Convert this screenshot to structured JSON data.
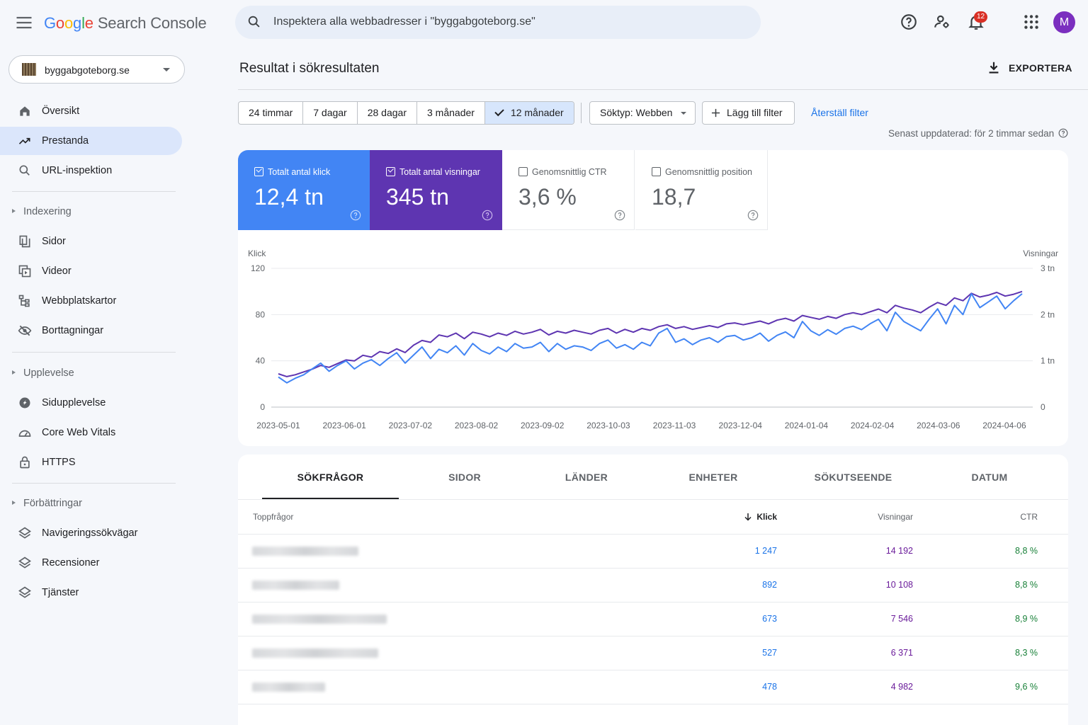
{
  "header": {
    "logo_google": [
      "G",
      "o",
      "o",
      "g",
      "l",
      "e"
    ],
    "logo_product": "Search Console",
    "search_placeholder": "Inspektera alla webbadresser i \"byggabgoteborg.se\"",
    "notification_count": "12",
    "avatar_letter": "M"
  },
  "sidebar": {
    "property": "byggabgoteborg.se",
    "items_top": [
      {
        "label": "Översikt",
        "icon": "home-icon"
      },
      {
        "label": "Prestanda",
        "icon": "trending-up-icon",
        "active": true
      },
      {
        "label": "URL-inspektion",
        "icon": "search-icon"
      }
    ],
    "sections": [
      {
        "title": "Indexering",
        "items": [
          {
            "label": "Sidor",
            "icon": "pages-icon"
          },
          {
            "label": "Videor",
            "icon": "video-icon"
          },
          {
            "label": "Webbplatskartor",
            "icon": "sitemap-icon"
          },
          {
            "label": "Borttagningar",
            "icon": "removals-icon"
          }
        ]
      },
      {
        "title": "Upplevelse",
        "items": [
          {
            "label": "Sidupplevelse",
            "icon": "page-experience-icon"
          },
          {
            "label": "Core Web Vitals",
            "icon": "gauge-icon"
          },
          {
            "label": "HTTPS",
            "icon": "lock-icon"
          }
        ]
      },
      {
        "title": "Förbättringar",
        "items": [
          {
            "label": "Navigeringssökvägar",
            "icon": "layers-icon"
          },
          {
            "label": "Recensioner",
            "icon": "layers-icon"
          },
          {
            "label": "Tjänster",
            "icon": "layers-icon"
          }
        ]
      }
    ]
  },
  "main": {
    "title": "Resultat i sökresultaten",
    "export_label": "EXPORTERA",
    "ranges": [
      "24 timmar",
      "7 dagar",
      "28 dagar",
      "3 månader",
      "12 månader"
    ],
    "selected_range": "12 månader",
    "search_type": "Söktyp: Webben",
    "add_filter": "Lägg till filter",
    "reset_filter": "Återställ filter",
    "updated": "Senast uppdaterad: för 2 timmar sedan"
  },
  "metrics": [
    {
      "label": "Totalt antal klick",
      "value": "12,4 tn",
      "selected": true,
      "color": "#4285f4"
    },
    {
      "label": "Totalt antal visningar",
      "value": "345 tn",
      "selected": true,
      "color": "#5e35b1"
    },
    {
      "label": "Genomsnittlig CTR",
      "value": "3,6 %",
      "selected": false
    },
    {
      "label": "Genomsnittlig position",
      "value": "18,7",
      "selected": false
    }
  ],
  "chart_data": {
    "type": "line",
    "ylabel_left": "Klick",
    "ylabel_right": "Visningar",
    "ylim_left": [
      0,
      120
    ],
    "yticks_left": [
      "0",
      "40",
      "80",
      "120"
    ],
    "ylim_right": [
      0,
      3
    ],
    "yticks_right": [
      "0",
      "1 tn",
      "2 tn",
      "3 tn"
    ],
    "x_ticks": [
      "2023-05-01",
      "2023-06-01",
      "2023-07-02",
      "2023-08-02",
      "2023-09-02",
      "2023-10-03",
      "2023-11-03",
      "2023-12-04",
      "2024-01-04",
      "2024-02-04",
      "2024-03-06",
      "2024-04-06"
    ],
    "x_start": "2023-05-01",
    "x_end": "2024-04-16",
    "grid": true,
    "series": [
      {
        "name": "Klick",
        "axis": "left",
        "color": "#4285f4",
        "values": [
          26,
          21,
          25,
          28,
          33,
          38,
          31,
          36,
          40,
          33,
          38,
          41,
          36,
          42,
          47,
          38,
          45,
          52,
          42,
          50,
          47,
          53,
          45,
          55,
          49,
          46,
          52,
          48,
          55,
          51,
          52,
          56,
          48,
          55,
          50,
          53,
          52,
          49,
          55,
          58,
          51,
          54,
          50,
          56,
          53,
          64,
          68,
          56,
          59,
          54,
          58,
          60,
          56,
          61,
          62,
          58,
          60,
          64,
          57,
          62,
          65,
          60,
          74,
          66,
          62,
          67,
          63,
          68,
          70,
          67,
          72,
          76,
          66,
          82,
          74,
          70,
          66,
          76,
          85,
          72,
          88,
          80,
          98,
          86,
          91,
          96,
          85,
          92,
          98
        ]
      },
      {
        "name": "Visningar",
        "axis": "right",
        "color": "#5e35b1",
        "values": [
          0.72,
          0.66,
          0.7,
          0.76,
          0.82,
          0.9,
          0.86,
          0.94,
          1.02,
          1.0,
          1.12,
          1.08,
          1.2,
          1.16,
          1.26,
          1.18,
          1.34,
          1.44,
          1.4,
          1.56,
          1.52,
          1.6,
          1.48,
          1.62,
          1.58,
          1.52,
          1.6,
          1.55,
          1.64,
          1.58,
          1.62,
          1.68,
          1.56,
          1.64,
          1.6,
          1.66,
          1.62,
          1.58,
          1.66,
          1.7,
          1.6,
          1.68,
          1.62,
          1.7,
          1.66,
          1.74,
          1.78,
          1.7,
          1.74,
          1.68,
          1.72,
          1.76,
          1.72,
          1.8,
          1.82,
          1.78,
          1.82,
          1.86,
          1.8,
          1.88,
          1.92,
          1.86,
          1.98,
          1.94,
          1.9,
          1.96,
          1.92,
          2.0,
          2.04,
          2.0,
          2.06,
          2.12,
          2.04,
          2.2,
          2.14,
          2.1,
          2.04,
          2.16,
          2.26,
          2.2,
          2.36,
          2.3,
          2.46,
          2.38,
          2.42,
          2.48,
          2.4,
          2.44,
          2.5
        ]
      }
    ]
  },
  "table": {
    "tabs": [
      "SÖKFRÅGOR",
      "SIDOR",
      "LÄNDER",
      "ENHETER",
      "SÖKUTSEENDE",
      "DATUM"
    ],
    "active_tab": "SÖKFRÅGOR",
    "col_query": "Toppfrågor",
    "col_clicks": "Klick",
    "col_impressions": "Visningar",
    "col_ctr": "CTR",
    "rows": [
      {
        "clicks": "1 247",
        "impressions": "14 192",
        "ctr": "8,8 %"
      },
      {
        "clicks": "892",
        "impressions": "10 108",
        "ctr": "8,8 %"
      },
      {
        "clicks": "673",
        "impressions": "7 546",
        "ctr": "8,9 %"
      },
      {
        "clicks": "527",
        "impressions": "6 371",
        "ctr": "8,3 %"
      },
      {
        "clicks": "478",
        "impressions": "4 982",
        "ctr": "9,6 %"
      }
    ]
  }
}
